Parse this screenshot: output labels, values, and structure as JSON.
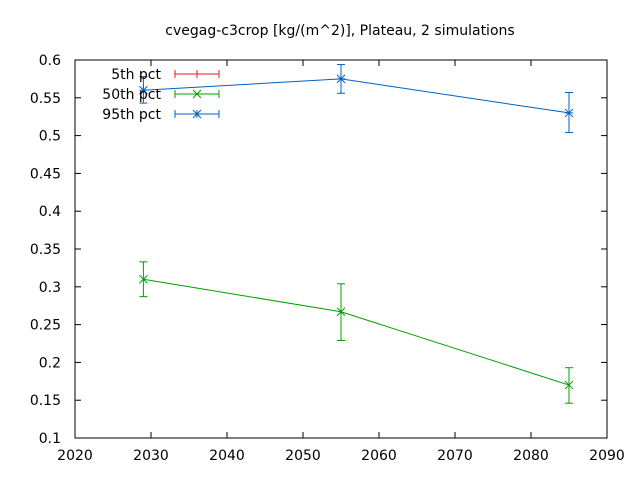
{
  "chart_data": {
    "type": "line",
    "title": "cvegag-c3crop [kg/(m^2)], Plateau, 2 simulations",
    "xlabel": "",
    "ylabel": "",
    "xlim": [
      2020,
      2090
    ],
    "ylim": [
      0.1,
      0.6
    ],
    "xticks": [
      2020,
      2030,
      2040,
      2050,
      2060,
      2070,
      2080,
      2090
    ],
    "yticks": [
      0.1,
      0.15,
      0.2,
      0.25,
      0.3,
      0.35,
      0.4,
      0.45,
      0.5,
      0.55,
      0.6
    ],
    "ytick_labels": [
      "0.1",
      "0.15",
      "0.2",
      "0.25",
      "0.3",
      "0.35",
      "0.4",
      "0.45",
      "0.5",
      "0.55",
      "0.6"
    ],
    "legend_position": "top-left",
    "grid": false,
    "series": [
      {
        "name": "5th pct",
        "color": "#e41a1c",
        "marker": "plus",
        "points": []
      },
      {
        "name": "50th pct",
        "color": "#00a000",
        "marker": "cross",
        "points": [
          {
            "x": 2029,
            "y": 0.31,
            "ylow": 0.287,
            "yhigh": 0.333
          },
          {
            "x": 2055,
            "y": 0.267,
            "ylow": 0.229,
            "yhigh": 0.304
          },
          {
            "x": 2085,
            "y": 0.17,
            "ylow": 0.146,
            "yhigh": 0.193
          }
        ]
      },
      {
        "name": "95th pct",
        "color": "#0060c0",
        "marker": "star",
        "points": [
          {
            "x": 2029,
            "y": 0.56,
            "ylow": 0.543,
            "yhigh": 0.578
          },
          {
            "x": 2055,
            "y": 0.575,
            "ylow": 0.556,
            "yhigh": 0.594
          },
          {
            "x": 2085,
            "y": 0.53,
            "ylow": 0.504,
            "yhigh": 0.557
          }
        ]
      }
    ]
  }
}
